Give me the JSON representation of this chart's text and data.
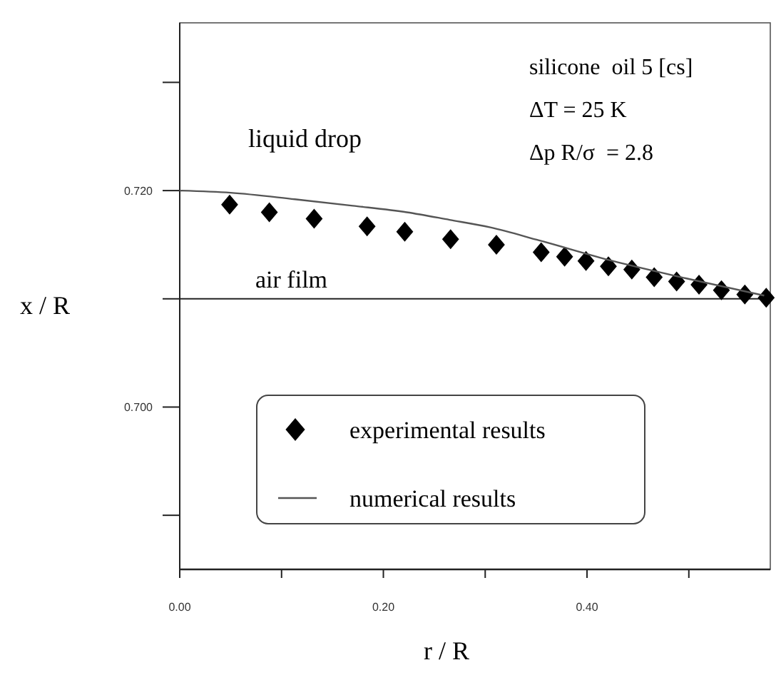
{
  "chart_data": {
    "type": "scatter",
    "xlabel": "r / R",
    "ylabel": "x / R",
    "xlim": [
      0,
      0.58
    ],
    "ylim": [
      0.685,
      0.7355
    ],
    "xticks": [
      {
        "value": 0,
        "label": "0.00"
      },
      {
        "value": 0.1,
        "label": null
      },
      {
        "value": 0.2,
        "label": "0.20"
      },
      {
        "value": 0.3,
        "label": null
      },
      {
        "value": 0.4,
        "label": "0.40"
      },
      {
        "value": 0.5,
        "label": null
      }
    ],
    "yticks": [
      {
        "value": 0.69,
        "label": null
      },
      {
        "value": 0.7,
        "label": "0.700"
      },
      {
        "value": 0.71,
        "label": null
      },
      {
        "value": 0.72,
        "label": "0.720"
      },
      {
        "value": 0.73,
        "label": null
      }
    ],
    "grid": false,
    "legend": "bottom left",
    "series": [
      {
        "name": "experimental results",
        "marker": "diamond",
        "color": "#000000",
        "x": [
          0.049,
          0.088,
          0.132,
          0.184,
          0.221,
          0.266,
          0.311,
          0.355,
          0.378,
          0.399,
          0.421,
          0.444,
          0.466,
          0.488,
          0.51,
          0.532,
          0.555,
          0.576
        ],
        "values": [
          0.7187,
          0.718,
          0.7174,
          0.7167,
          0.7162,
          0.7155,
          0.715,
          0.7143,
          0.7139,
          0.7135,
          0.713,
          0.7127,
          0.712,
          0.7116,
          0.7113,
          0.7108,
          0.7104,
          0.7101
        ]
      },
      {
        "name": "numerical results",
        "type": "line",
        "color": "#555555",
        "x": [
          0,
          0.05,
          0.113,
          0.17,
          0.223,
          0.265,
          0.305,
          0.353,
          0.425,
          0.497,
          0.574
        ],
        "values": [
          0.72,
          0.7198,
          0.7192,
          0.7186,
          0.718,
          0.7173,
          0.7166,
          0.7154,
          0.7135,
          0.7119,
          0.7103
        ]
      }
    ],
    "ref_lines": [
      {
        "axis": "y",
        "value": 0.71,
        "label": "air film",
        "color": "#222222"
      }
    ],
    "annotations": [
      "liquid drop",
      "silicone  oil 5 [cs]",
      "ΔT = 25 K",
      "Δp R/σ  = 2.8"
    ]
  }
}
